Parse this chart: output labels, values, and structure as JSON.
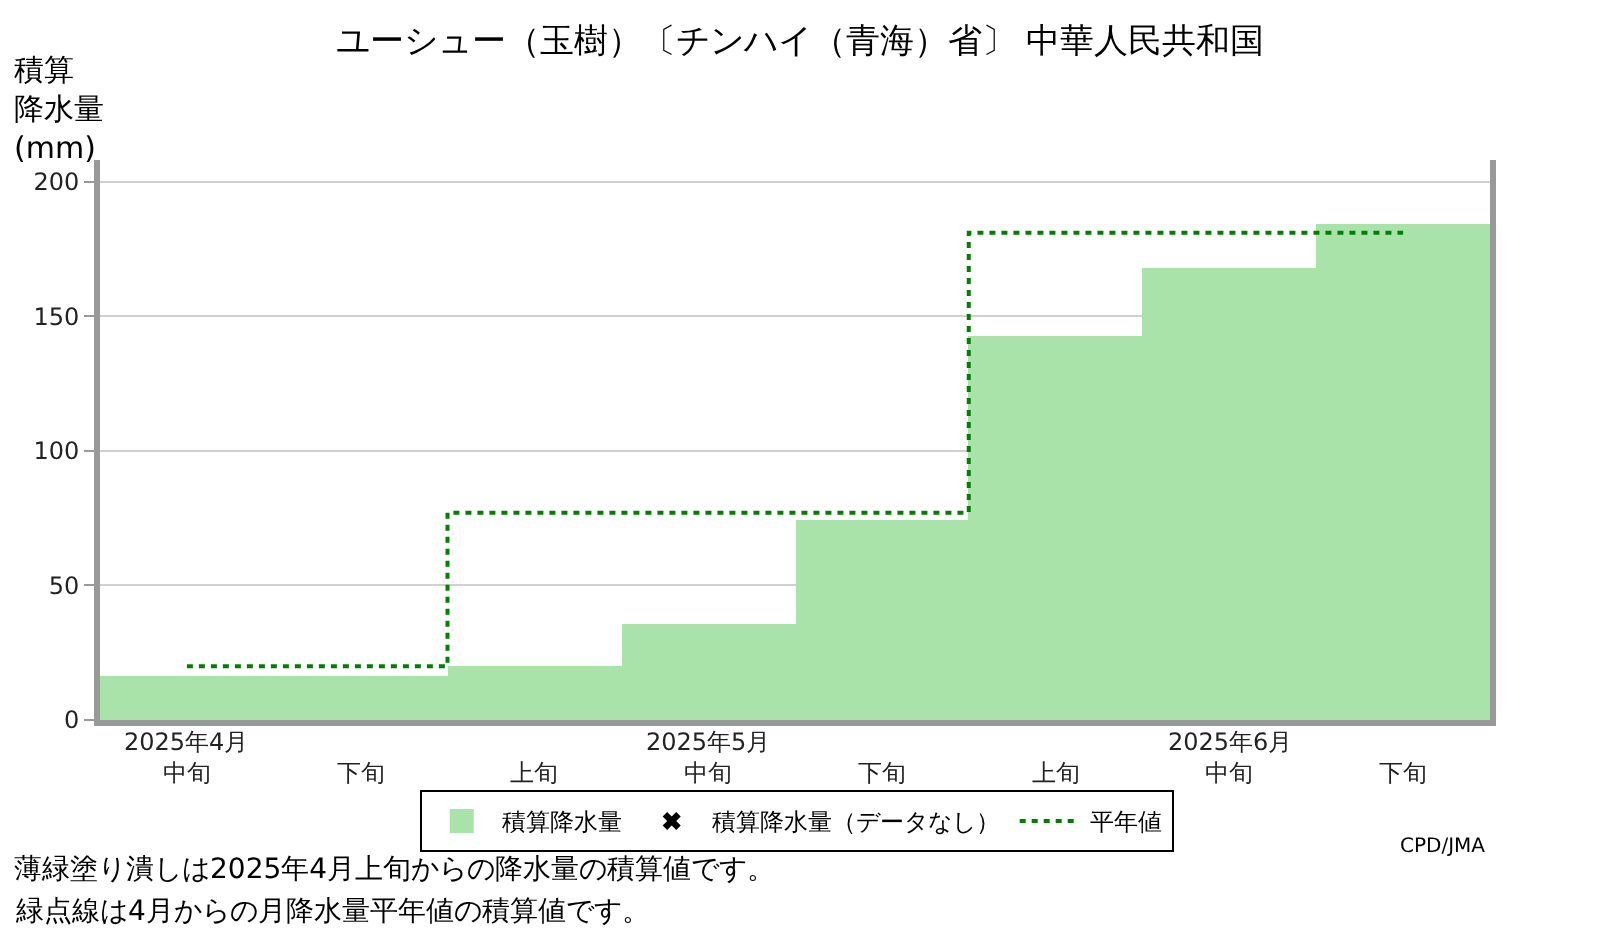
{
  "chart_data": {
    "type": "bar",
    "title": "ユーシュー（玉樹）〔チンハイ（青海）省〕 中華人民共和国",
    "ylabel": "積算降水量(mm)",
    "categories": [
      "中旬",
      "下旬",
      "上旬",
      "中旬",
      "下旬",
      "上旬",
      "中旬",
      "下旬"
    ],
    "series": [
      {
        "name": "積算降水量",
        "color": "#aae3aa",
        "values": [
          16,
          16,
          20,
          36,
          74,
          143,
          168,
          184
        ]
      },
      {
        "name": "積算降水量（データなし）",
        "type": "scatter",
        "color": "#000000",
        "marker": "cross",
        "values": [
          null,
          null,
          null,
          null,
          null,
          null,
          null,
          null
        ]
      },
      {
        "name": "平年値",
        "type": "step",
        "color": "#008000",
        "line_style": "dotted",
        "values": [
          20,
          20,
          77,
          77,
          77,
          181,
          181,
          181
        ]
      }
    ],
    "ylim": [
      0,
      208
    ],
    "yticks": [
      0,
      50,
      100,
      150,
      200
    ],
    "grid": "y",
    "legend": "bottom",
    "annotations": [
      "2025年4月",
      "2025年5月",
      "2025年6月",
      "CPD/JMA",
      "薄緑塗り潰しは2025年4月上旬からの降水量の積算値です。",
      "緑点線は4月からの月降水量平年値の積算値です。"
    ]
  }
}
